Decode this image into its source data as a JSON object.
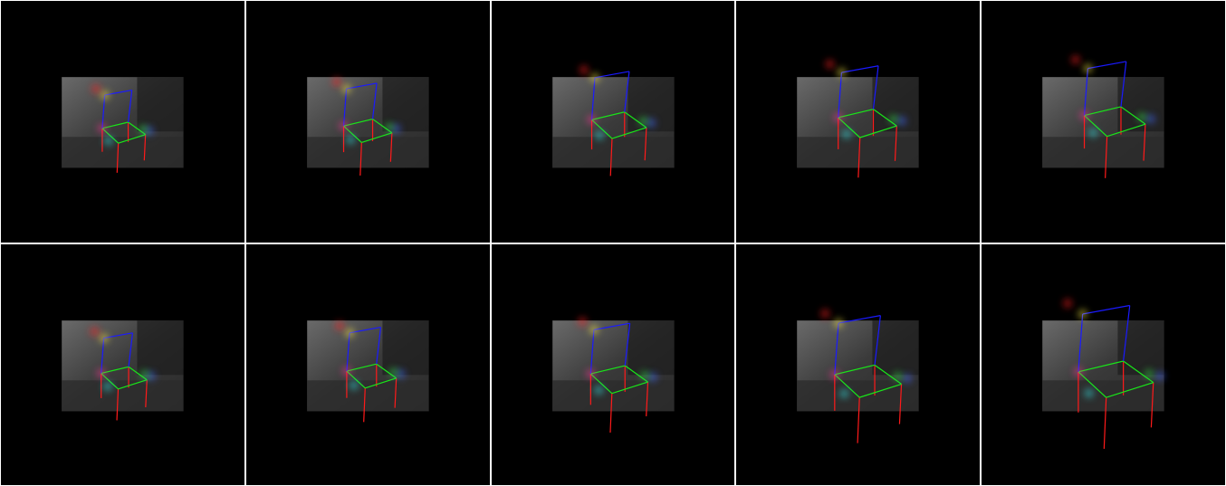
{
  "figure": {
    "rows": 2,
    "cols": 5,
    "edge_colors": {
      "legs": "#ff1a1a",
      "seat": "#19e619",
      "back": "#1a1aff"
    },
    "keypoint_colors": [
      "#ffee44",
      "#ff3399",
      "#33e5e5",
      "#ff2222",
      "#4466ff",
      "#33dd44"
    ]
  },
  "tiles": [
    {
      "id": "r1c1",
      "scale": 0.68,
      "shift": [
        -2,
        6
      ]
    },
    {
      "id": "r1c2",
      "scale": 0.76,
      "shift": [
        -4,
        4
      ]
    },
    {
      "id": "r1c3",
      "scale": 0.86,
      "shift": [
        2,
        -2
      ]
    },
    {
      "id": "r1c4",
      "scale": 0.92,
      "shift": [
        6,
        -4
      ]
    },
    {
      "id": "r1c5",
      "scale": 0.96,
      "shift": [
        8,
        -6
      ]
    },
    {
      "id": "r2c1",
      "scale": 0.72,
      "shift": [
        -2,
        8
      ]
    },
    {
      "id": "r2c2",
      "scale": 0.78,
      "shift": [
        0,
        6
      ]
    },
    {
      "id": "r2c3",
      "scale": 0.9,
      "shift": [
        2,
        10
      ]
    },
    {
      "id": "r2c4",
      "scale": 1.05,
      "shift": [
        6,
        12
      ]
    },
    {
      "id": "r2c5",
      "scale": 1.18,
      "shift": [
        8,
        10
      ]
    }
  ]
}
